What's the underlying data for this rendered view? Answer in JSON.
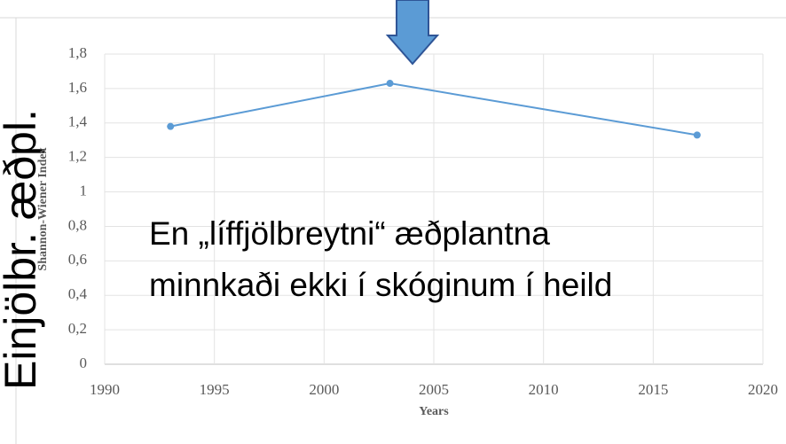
{
  "chart_data": {
    "type": "line",
    "side_title": "Einjölbr. æðpl.",
    "annotation": [
      "En „líffjölbreytni“ æðplantna",
      "minnkaði ekki í skóginum í heild"
    ],
    "x_label": "Years",
    "y_label": "Shannon-Wiener Index",
    "x": [
      1993,
      2003,
      2017
    ],
    "series": [
      {
        "name": "Shannon-Wiener Index",
        "color": "#5b9bd5",
        "values": [
          1.38,
          1.63,
          1.33
        ]
      }
    ],
    "xlim": [
      1990,
      2020
    ],
    "xticks": [
      1990,
      1995,
      2000,
      2005,
      2010,
      2015,
      2020
    ],
    "ylim": [
      0,
      1.8
    ],
    "yticks": [
      0,
      {
        "value": 0.2,
        "label": "0,2"
      },
      {
        "value": 0.4,
        "label": "0,4"
      },
      {
        "value": 0.6,
        "label": "0,6"
      },
      {
        "value": 0.8,
        "label": "0,8"
      },
      1,
      {
        "value": 1.2,
        "label": "1,2"
      },
      {
        "value": 1.4,
        "label": "1,4"
      },
      {
        "value": 1.6,
        "label": "1,6"
      },
      {
        "value": 1.8,
        "label": "1,8"
      }
    ],
    "grid": true
  }
}
